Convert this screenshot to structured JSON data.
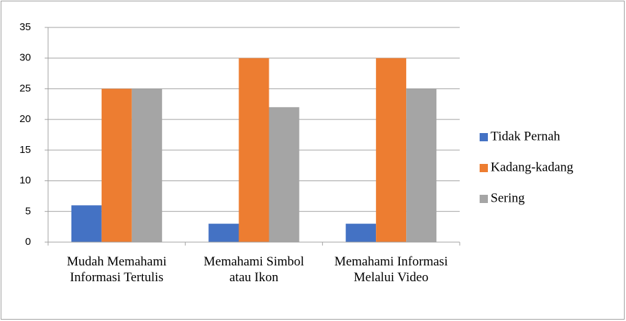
{
  "chart_data": {
    "type": "bar",
    "categories": [
      "Mudah Memahami Informasi Tertulis",
      "Memahami Simbol atau Ikon",
      "Memahami Informasi Melalui Video"
    ],
    "series": [
      {
        "name": "Tidak Pernah",
        "color": "#4472c4",
        "values": [
          6,
          3,
          3
        ]
      },
      {
        "name": "Kadang-kadang",
        "color": "#ed7d31",
        "values": [
          25,
          30,
          30
        ]
      },
      {
        "name": "Sering",
        "color": "#a5a5a5",
        "values": [
          25,
          22,
          25
        ]
      }
    ],
    "ylim": [
      0,
      35
    ],
    "yticks": [
      0,
      5,
      10,
      15,
      20,
      25,
      30,
      35
    ],
    "grid": true,
    "legend": "right"
  }
}
